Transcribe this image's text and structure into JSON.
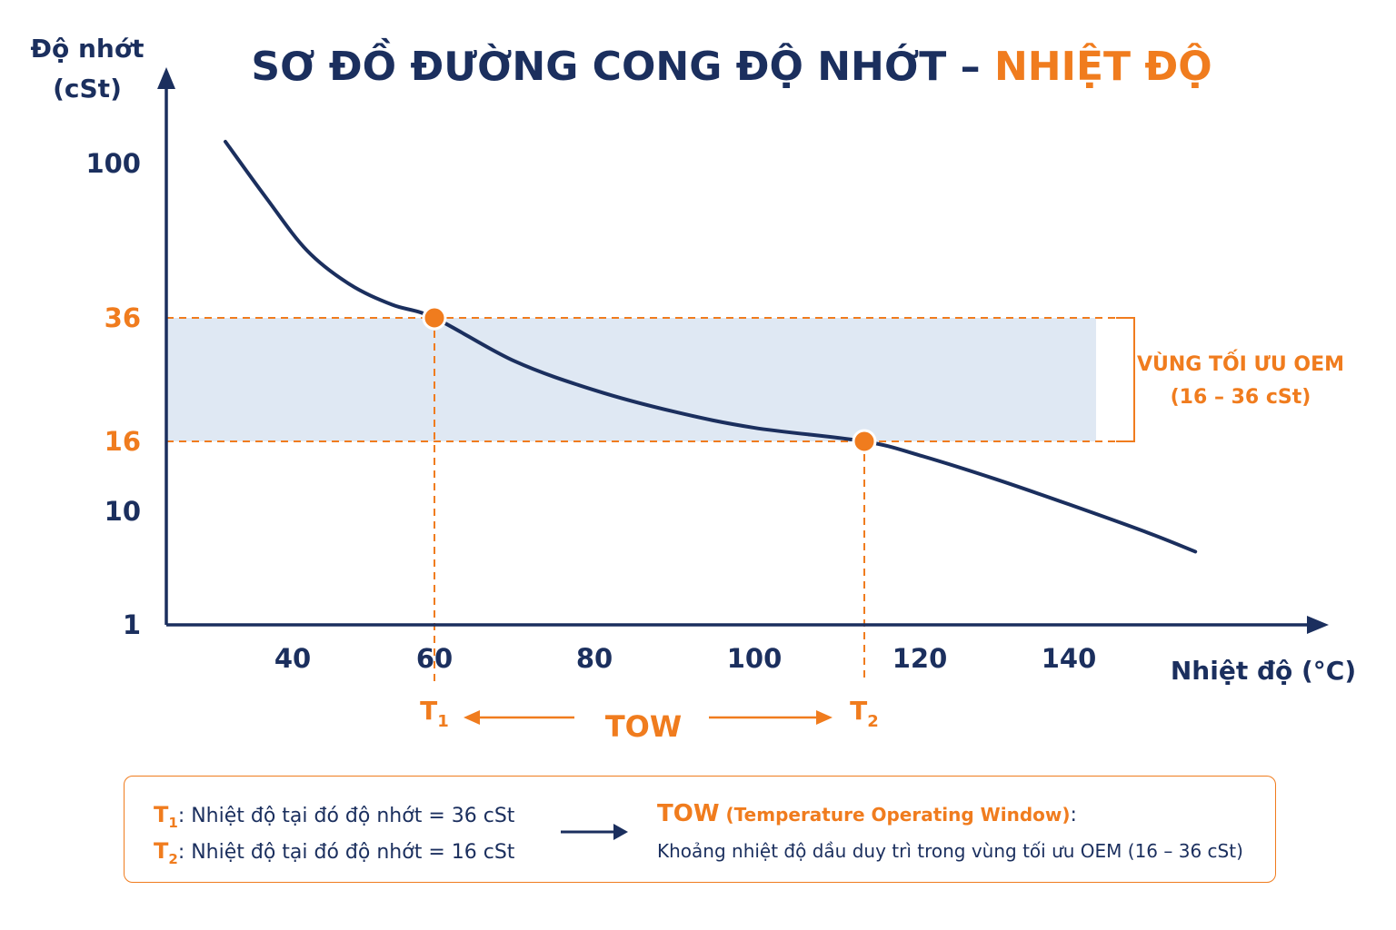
{
  "title": {
    "part1": "SƠ ĐỒ ĐƯỜNG CONG ĐỘ NHỚT – ",
    "part2": "NHIỆT ĐỘ"
  },
  "colors": {
    "navy": "#1b2f5e",
    "orange": "#f07c1e",
    "band": "#dfe8f3"
  },
  "chart_data": {
    "type": "line",
    "title": "SƠ ĐỒ ĐƯỜNG CONG ĐỘ NHỚT – NHIỆT ĐỘ",
    "ylabel_lines": [
      "Độ nhớt",
      "(cSt)"
    ],
    "xlabel": "Nhiệt độ (°C)",
    "x_ticks": [
      40,
      60,
      80,
      100,
      120,
      140
    ],
    "y_ticks": [
      {
        "value": 100,
        "label": "100",
        "highlight": false
      },
      {
        "value": 36,
        "label": "36",
        "highlight": true
      },
      {
        "value": 16,
        "label": "16",
        "highlight": true
      },
      {
        "value": 10,
        "label": "10",
        "highlight": false
      },
      {
        "value": 1,
        "label": "1",
        "highlight": false
      }
    ],
    "series": [
      {
        "points": [
          [
            30,
            118
          ],
          [
            36,
            86
          ],
          [
            42,
            64
          ],
          [
            48,
            50
          ],
          [
            54,
            41.5
          ],
          [
            60,
            36
          ],
          [
            70,
            29
          ],
          [
            80,
            24.3
          ],
          [
            90,
            20.8
          ],
          [
            100,
            18.2
          ],
          [
            113,
            16
          ],
          [
            120,
            14.8
          ],
          [
            130,
            12.8
          ],
          [
            140,
            10.6
          ],
          [
            150,
            8.3
          ],
          [
            156,
            6.8
          ]
        ]
      }
    ],
    "band": {
      "from": 16,
      "to": 36,
      "label_lines": [
        "VÙNG TỐI ƯU OEM",
        "(16 – 36 cSt)"
      ]
    },
    "markers": [
      {
        "x": 60,
        "y": 36,
        "label": "T",
        "sub": "1"
      },
      {
        "x": 113,
        "y": 16,
        "label": "T",
        "sub": "2"
      }
    ],
    "window_label": "TOW",
    "grid": false
  },
  "legend": {
    "t1_symbol": "T",
    "t1_sub": "1",
    "t1_text": ": Nhiệt độ tại đó độ nhớt = 36 cSt",
    "t2_symbol": "T",
    "t2_sub": "2",
    "t2_text": ": Nhiệt độ tại đó độ nhớt = 16 cSt",
    "tow_title": "TOW",
    "tow_full": "(Temperature Operating Window)",
    "tow_colon": ":",
    "tow_desc": "Khoảng nhiệt độ dầu duy trì trong vùng tối ưu OEM (16 – 36 cSt)"
  }
}
